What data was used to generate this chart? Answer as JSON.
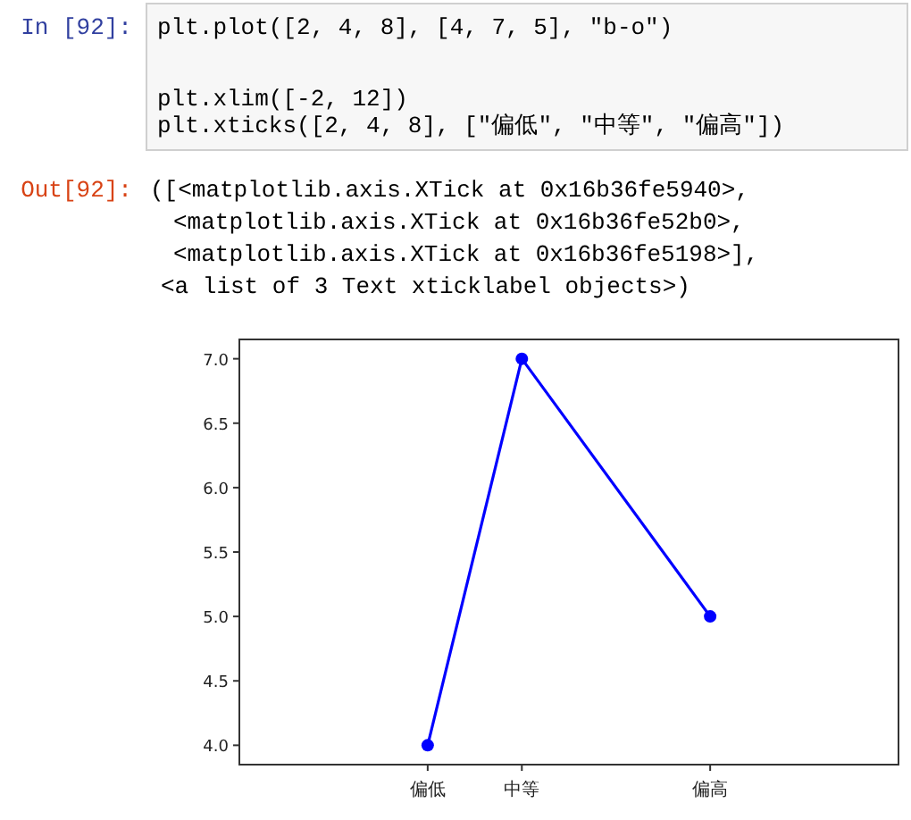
{
  "chart_data": {
    "type": "line",
    "categories": [
      null,
      null,
      "偏低",
      "中等",
      null,
      "偏高",
      null,
      null
    ],
    "series": [
      {
        "color": "#0000ff",
        "x": [
          "偏低",
          "中等",
          "偏高"
        ],
        "values": [
          4,
          7,
          5
        ]
      }
    ],
    "marker": "circle",
    "line_style": "solid",
    "grid": false,
    "ylim": [
      3.85,
      7.15
    ],
    "yticks": [
      {
        "value": 4,
        "label": "4.0"
      },
      {
        "value": 4.5,
        "label": "4.5"
      },
      {
        "value": 5,
        "label": "5.0"
      },
      {
        "value": 5.5,
        "label": "5.5"
      },
      {
        "value": 6,
        "label": "6.0"
      },
      {
        "value": 6.5,
        "label": "6.5"
      },
      {
        "value": 7,
        "label": "7.0"
      }
    ],
    "annotations": [
      "In [92]:",
      "plt.plot([2, 4, 8], [4, 7, 5], ″b-o″)",
      "plt.xlim([-2, 12])",
      "plt.xticks([2, 4, 8], [″偏低″, ″中等″, ″偏高″])",
      "Out[92]:",
      "([<matplotlib.axis.XTick at 0x16b36fe5940>,",
      "<matplotlib.axis.XTick at 0x16b36fe52b0>,",
      "<matplotlib.axis.XTick at 0x16b36fe5198>],",
      "<a list of 3 Text xticklabel objects>)"
    ]
  }
}
